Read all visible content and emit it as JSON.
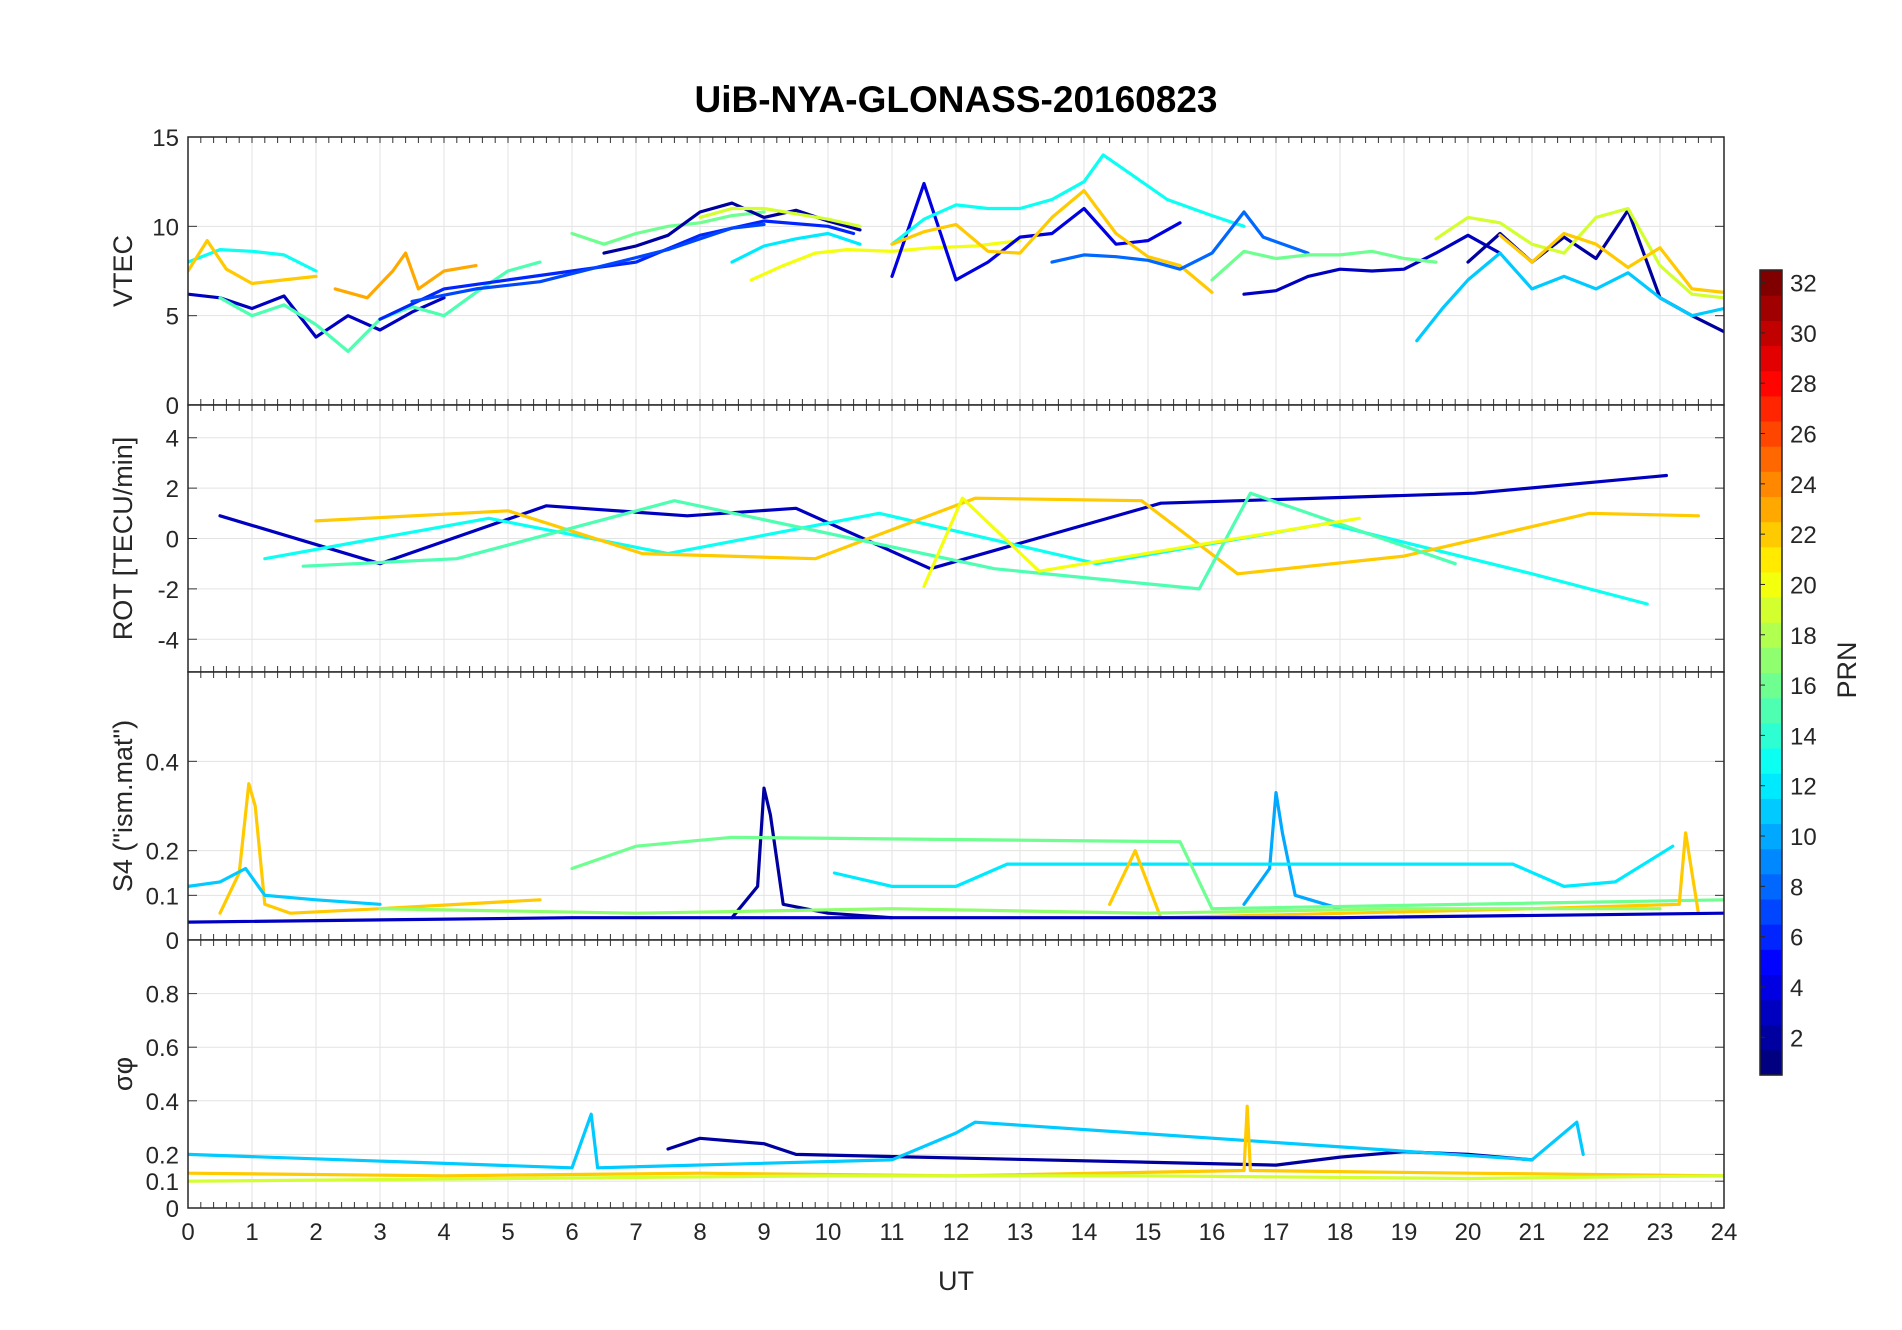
{
  "chart_data": {
    "type": "line",
    "title": "UiB-NYA-GLONASS-20160823",
    "xlabel": "UT",
    "xlim": [
      0,
      24
    ],
    "xticks": [
      "0",
      "1",
      "2",
      "3",
      "4",
      "5",
      "6",
      "7",
      "8",
      "9",
      "10",
      "11",
      "12",
      "13",
      "14",
      "15",
      "16",
      "17",
      "18",
      "19",
      "20",
      "21",
      "22",
      "23",
      "24"
    ],
    "grid": true,
    "colormap": "jet",
    "colorbar": {
      "label": "PRN",
      "range": [
        1,
        32
      ],
      "ticks": [
        "2",
        "4",
        "6",
        "8",
        "10",
        "12",
        "14",
        "16",
        "18",
        "20",
        "22",
        "24",
        "26",
        "28",
        "30",
        "32"
      ]
    },
    "panels": [
      {
        "ylabel": "VTEC",
        "ylim": [
          0,
          15
        ],
        "yticks": [
          "0",
          "5",
          "10",
          "15"
        ],
        "series": [
          {
            "prn": 3,
            "x": [
              0,
              0.5,
              1,
              1.5,
              2,
              2.5,
              3,
              3.5,
              4
            ],
            "y": [
              6.2,
              6.0,
              5.4,
              6.1,
              3.8,
              5.0,
              4.2,
              5.2,
              6.0
            ]
          },
          {
            "prn": 13,
            "x": [
              0,
              0.5,
              1,
              1.5,
              2
            ],
            "y": [
              8.0,
              8.7,
              8.6,
              8.4,
              7.5
            ]
          },
          {
            "prn": 22,
            "x": [
              0,
              0.3,
              0.6,
              1,
              1.5,
              2
            ],
            "y": [
              7.5,
              9.2,
              7.6,
              6.8,
              7.0,
              7.2
            ]
          },
          {
            "prn": 15,
            "x": [
              0.5,
              1,
              1.5,
              2,
              2.5,
              3,
              3.5,
              4,
              4.5,
              5,
              5.5
            ],
            "y": [
              6.0,
              5.0,
              5.6,
              4.5,
              3.0,
              4.8,
              5.5,
              5.0,
              6.3,
              7.5,
              8.0
            ]
          },
          {
            "prn": 23,
            "x": [
              2.3,
              2.8,
              3.2,
              3.4,
              3.6,
              4,
              4.5
            ],
            "y": [
              6.5,
              6.0,
              7.5,
              8.5,
              6.5,
              7.5,
              7.8
            ]
          },
          {
            "prn": 6,
            "x": [
              3,
              4,
              5,
              6,
              7,
              8,
              9,
              10,
              10.4
            ],
            "y": [
              4.8,
              6.5,
              7.0,
              7.5,
              8.0,
              9.5,
              10.3,
              10.0,
              9.6
            ]
          },
          {
            "prn": 7,
            "x": [
              3.5,
              4.5,
              5.5,
              6.5,
              7.5,
              8.5,
              9.0
            ],
            "y": [
              5.8,
              6.5,
              6.9,
              7.8,
              8.7,
              9.9,
              10.1
            ]
          },
          {
            "prn": 16,
            "x": [
              6,
              6.5,
              7,
              7.5,
              8,
              8.5,
              9
            ],
            "y": [
              9.6,
              9.0,
              9.6,
              10.0,
              10.2,
              10.6,
              10.8
            ]
          },
          {
            "prn": 2,
            "x": [
              6.5,
              7,
              7.5,
              8,
              8.5,
              9,
              9.5,
              10,
              10.5
            ],
            "y": [
              8.5,
              8.9,
              9.5,
              10.8,
              11.3,
              10.5,
              10.9,
              10.3,
              9.8
            ]
          },
          {
            "prn": 19,
            "x": [
              8,
              8.5,
              9,
              9.5,
              10,
              10.5
            ],
            "y": [
              10.5,
              11.0,
              11.0,
              10.7,
              10.4,
              10.0
            ]
          },
          {
            "prn": 12,
            "x": [
              8.5,
              9,
              9.5,
              10,
              10.5
            ],
            "y": [
              8.0,
              8.9,
              9.3,
              9.6,
              9.0
            ]
          },
          {
            "prn": 20,
            "x": [
              8.8,
              9.3,
              9.8,
              10.3,
              11,
              11.6,
              12.3,
              13
            ],
            "y": [
              7.0,
              7.8,
              8.5,
              8.7,
              8.6,
              8.8,
              8.9,
              9.2
            ]
          },
          {
            "prn": 4,
            "x": [
              11,
              11.5,
              12,
              12.5,
              13,
              13.5,
              14,
              14.5,
              15,
              15.5
            ],
            "y": [
              7.2,
              12.4,
              7.0,
              8.0,
              9.4,
              9.6,
              11.0,
              9.0,
              9.2,
              10.2
            ]
          },
          {
            "prn": 13,
            "x": [
              11,
              11.5,
              12,
              12.5,
              13,
              13.5,
              14,
              14.3,
              14.7,
              15.3,
              16,
              16.5
            ],
            "y": [
              9.0,
              10.4,
              11.2,
              11.0,
              11.0,
              11.5,
              12.5,
              14.0,
              13.0,
              11.5,
              10.6,
              10.0
            ]
          },
          {
            "prn": 22,
            "x": [
              11,
              11.5,
              12,
              12.5,
              13,
              13.5,
              14,
              14.5,
              15,
              15.5,
              16
            ],
            "y": [
              9.0,
              9.7,
              10.1,
              8.6,
              8.5,
              10.5,
              12.0,
              9.6,
              8.3,
              7.8,
              6.3
            ]
          },
          {
            "prn": 8,
            "x": [
              13.5,
              14,
              14.5,
              15,
              15.5,
              16,
              16.5,
              16.8,
              17.5
            ],
            "y": [
              8.0,
              8.4,
              8.3,
              8.1,
              7.6,
              8.5,
              10.8,
              9.4,
              8.5
            ]
          },
          {
            "prn": 3,
            "x": [
              16.5,
              17,
              17.5,
              18,
              18.5,
              19,
              19.5,
              20,
              20.5
            ],
            "y": [
              6.2,
              6.4,
              7.2,
              7.6,
              7.5,
              7.6,
              8.5,
              9.5,
              8.5
            ]
          },
          {
            "prn": 16,
            "x": [
              16,
              16.5,
              17,
              17.5,
              18,
              18.5,
              19,
              19.5
            ],
            "y": [
              7.0,
              8.6,
              8.2,
              8.4,
              8.4,
              8.6,
              8.2,
              8.0
            ]
          },
          {
            "prn": 2,
            "x": [
              20,
              20.5,
              21,
              21.5,
              22,
              22.5,
              23,
              23.5,
              24
            ],
            "y": [
              8.0,
              9.6,
              8.0,
              9.4,
              8.2,
              10.9,
              6.0,
              5.0,
              4.1
            ]
          },
          {
            "prn": 11,
            "x": [
              19.2,
              19.6,
              20,
              20.5,
              21,
              21.5,
              22,
              22.5,
              23,
              23.5,
              24
            ],
            "y": [
              3.6,
              5.4,
              7.0,
              8.5,
              6.5,
              7.2,
              6.5,
              7.4,
              6.0,
              5.0,
              5.4
            ]
          },
          {
            "prn": 19,
            "x": [
              19.5,
              20,
              20.5,
              21,
              21.5,
              22,
              22.5,
              23,
              23.5,
              24
            ],
            "y": [
              9.3,
              10.5,
              10.2,
              9.0,
              8.5,
              10.5,
              11.0,
              7.8,
              6.2,
              6.0
            ]
          },
          {
            "prn": 22,
            "x": [
              20.5,
              21,
              21.5,
              22,
              22.5,
              23,
              23.5,
              24
            ],
            "y": [
              9.5,
              8.0,
              9.6,
              9.0,
              7.7,
              8.8,
              6.5,
              6.3
            ]
          }
        ]
      },
      {
        "ylabel": "ROT [TECU/min]",
        "ylim": [
          -5.3,
          5.3
        ],
        "yticks": [
          "-4",
          "-2",
          "0",
          "2",
          "4"
        ],
        "series": [
          {
            "prn": 3,
            "x": [
              0.5,
              3,
              5.6,
              7.8,
              9.5,
              11.6,
              15.2,
              20.1,
              23.1
            ],
            "y": [
              0.9,
              -1.0,
              1.3,
              0.9,
              1.2,
              -1.2,
              1.4,
              1.8,
              2.5
            ]
          },
          {
            "prn": 13,
            "x": [
              1.2,
              4.7,
              7.5,
              10.8,
              14.2,
              17.8,
              21.0,
              22.8
            ],
            "y": [
              -0.8,
              0.8,
              -0.6,
              1.0,
              -1.0,
              0.6,
              -1.4,
              -2.6
            ]
          },
          {
            "prn": 22,
            "x": [
              2.0,
              5.0,
              7.1,
              9.8,
              12.3,
              14.9,
              16.4,
              19.0,
              21.9,
              23.6
            ],
            "y": [
              0.7,
              1.1,
              -0.6,
              -0.8,
              1.6,
              1.5,
              -1.4,
              -0.7,
              1.0,
              0.9
            ]
          },
          {
            "prn": 15,
            "x": [
              1.8,
              4.2,
              7.6,
              12.6,
              15.8,
              16.6,
              19.8
            ],
            "y": [
              -1.1,
              -0.8,
              1.5,
              -1.2,
              -2.0,
              1.8,
              -1.0
            ]
          },
          {
            "prn": 20,
            "x": [
              11.5,
              12.1,
              13.3,
              18.3
            ],
            "y": [
              -1.9,
              1.6,
              -1.3,
              0.8
            ]
          }
        ]
      },
      {
        "ylabel": "S4 (\"ism.mat\")",
        "ylabel_sub": "4",
        "ylim": [
          0,
          0.6
        ],
        "yticks": [
          "0",
          "0.1",
          "0.2",
          "0.4"
        ],
        "series": [
          {
            "prn": 22,
            "x": [
              0.5,
              0.8,
              0.95,
              1.05,
              1.2,
              1.6,
              3,
              5.5
            ],
            "y": [
              0.06,
              0.15,
              0.35,
              0.3,
              0.08,
              0.06,
              0.07,
              0.09
            ]
          },
          {
            "prn": 11,
            "x": [
              0,
              0.5,
              0.9,
              1.2,
              2,
              3
            ],
            "y": [
              0.12,
              0.13,
              0.16,
              0.1,
              0.09,
              0.08
            ]
          },
          {
            "prn": 2,
            "x": [
              8.5,
              8.9,
              9.0,
              9.1,
              9.3,
              10,
              11
            ],
            "y": [
              0.05,
              0.12,
              0.34,
              0.28,
              0.08,
              0.06,
              0.05
            ]
          },
          {
            "prn": 10,
            "x": [
              16.5,
              16.9,
              17.0,
              17.1,
              17.3,
              18
            ],
            "y": [
              0.08,
              0.16,
              0.33,
              0.24,
              0.1,
              0.07
            ]
          },
          {
            "prn": 12,
            "x": [
              10.1,
              11,
              12,
              12.8,
              20.7,
              21.5,
              22.3,
              23.2
            ],
            "y": [
              0.15,
              0.12,
              0.12,
              0.17,
              0.17,
              0.12,
              0.13,
              0.21
            ]
          },
          {
            "prn": 16,
            "x": [
              6,
              7,
              8.5,
              15.5,
              16,
              24
            ],
            "y": [
              0.16,
              0.21,
              0.23,
              0.22,
              0.07,
              0.09
            ]
          },
          {
            "prn": 22,
            "x": [
              14.4,
              14.8,
              15.2,
              21,
              23.3,
              23.4,
              23.6
            ],
            "y": [
              0.08,
              0.2,
              0.05,
              0.07,
              0.08,
              0.24,
              0.06
            ]
          },
          {
            "prn": 3,
            "x": [
              0,
              6,
              12,
              18,
              24
            ],
            "y": [
              0.04,
              0.05,
              0.05,
              0.05,
              0.06
            ]
          },
          {
            "prn": 17,
            "x": [
              3,
              7,
              11,
              15,
              19,
              23
            ],
            "y": [
              0.07,
              0.06,
              0.07,
              0.06,
              0.07,
              0.07
            ]
          }
        ]
      },
      {
        "ylabel": "σφ",
        "ylim": [
          0,
          1
        ],
        "yticks": [
          "0",
          "0.1",
          "0.2",
          "0.4",
          "0.6",
          "0.8"
        ],
        "series": [
          {
            "prn": 2,
            "x": [
              7.5,
              8,
              8.5,
              9,
              9.5,
              17,
              18,
              19,
              20,
              21
            ],
            "y": [
              0.22,
              0.26,
              0.25,
              0.24,
              0.2,
              0.16,
              0.19,
              0.21,
              0.2,
              0.18
            ]
          },
          {
            "prn": 11,
            "x": [
              0,
              6,
              6.3,
              6.4,
              11,
              12,
              12.3,
              21,
              21.7,
              21.8
            ],
            "y": [
              0.2,
              0.15,
              0.35,
              0.15,
              0.18,
              0.28,
              0.32,
              0.18,
              0.32,
              0.2
            ]
          },
          {
            "prn": 22,
            "x": [
              0,
              4,
              8,
              12,
              16.5,
              16.55,
              16.6,
              20,
              24
            ],
            "y": [
              0.13,
              0.12,
              0.13,
              0.12,
              0.14,
              0.38,
              0.14,
              0.13,
              0.12
            ]
          },
          {
            "prn": 19,
            "x": [
              0,
              5,
              10,
              15,
              20,
              24
            ],
            "y": [
              0.1,
              0.11,
              0.12,
              0.12,
              0.11,
              0.12
            ]
          }
        ]
      }
    ]
  }
}
